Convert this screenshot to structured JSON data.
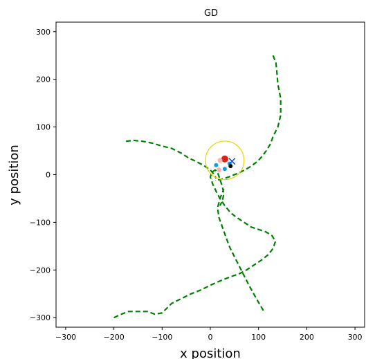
{
  "chart_data": {
    "type": "line",
    "title": "GD",
    "xlabel": "x position",
    "ylabel": "y position",
    "xlim": [
      -320,
      320
    ],
    "ylim": [
      -320,
      320
    ],
    "xticks": [
      -300,
      -200,
      -100,
      0,
      100,
      200,
      300
    ],
    "yticks": [
      -300,
      -200,
      -100,
      0,
      100,
      200,
      300
    ],
    "xtick_labels": [
      "−300",
      "−200",
      "−100",
      "0",
      "100",
      "200",
      "300"
    ],
    "ytick_labels": [
      "−300",
      "−200",
      "−100",
      "0",
      "100",
      "200",
      "300"
    ],
    "grid": false,
    "trajectory_color": "#008000",
    "series": [
      {
        "x": [
          130,
          136,
          138,
          140,
          146,
          146,
          140,
          130,
          125,
          116,
          107,
          98,
          85,
          72,
          55,
          38,
          22,
          10
        ],
        "y": [
          250,
          235,
          215,
          190,
          160,
          125,
          100,
          80,
          65,
          50,
          38,
          28,
          18,
          10,
          2,
          -5,
          -10,
          -12
        ]
      },
      {
        "x": [
          -175,
          -160,
          -140,
          -120,
          -100,
          -80,
          -60,
          -45,
          -30,
          -15,
          0,
          8,
          12
        ],
        "y": [
          70,
          72,
          70,
          66,
          60,
          55,
          45,
          35,
          28,
          20,
          10,
          0,
          -8
        ]
      },
      {
        "x": [
          -200,
          -185,
          -170,
          -150,
          -130,
          -115,
          -100,
          -90,
          -80,
          -60,
          -40,
          -20,
          0,
          20,
          40,
          60,
          75,
          90,
          105,
          120,
          130,
          135,
          128,
          115,
          100,
          85,
          70,
          55,
          42,
          30,
          20,
          12,
          5,
          0,
          3,
          10,
          15,
          20,
          25,
          28,
          25,
          20
        ],
        "y": [
          -300,
          -293,
          -287,
          -287,
          -287,
          -293,
          -290,
          -280,
          -270,
          -260,
          -250,
          -242,
          -232,
          -223,
          -215,
          -208,
          -200,
          -190,
          -180,
          -168,
          -155,
          -140,
          -128,
          -120,
          -115,
          -110,
          -100,
          -90,
          -80,
          -65,
          -50,
          -35,
          -20,
          -5,
          5,
          10,
          5,
          -10,
          -25,
          -40,
          -55,
          -65
        ]
      },
      {
        "x": [
          110,
          100,
          90,
          80,
          70,
          60,
          50,
          40,
          32,
          25,
          18,
          15,
          20,
          28
        ],
        "y": [
          -285,
          -268,
          -250,
          -232,
          -212,
          -192,
          -172,
          -152,
          -130,
          -110,
          -90,
          -70,
          -50,
          -30
        ]
      }
    ],
    "markers": [
      {
        "kind": "circle",
        "x": 30,
        "y": 30,
        "radius": 40,
        "color": "#e8d000"
      },
      {
        "kind": "point",
        "x": 30,
        "y": 33,
        "color": "#e02020",
        "size": 10
      },
      {
        "kind": "point",
        "x": 20,
        "y": 30,
        "color": "#ffb0b0",
        "size": 7
      },
      {
        "kind": "point",
        "x": 18,
        "y": 10,
        "color": "#ffb0b0",
        "size": 7
      },
      {
        "kind": "point",
        "x": 12,
        "y": 20,
        "color": "#1f9ad8",
        "size": 6
      },
      {
        "kind": "point",
        "x": 30,
        "y": 12,
        "color": "#1f9ad8",
        "size": 6
      },
      {
        "kind": "point",
        "x": 40,
        "y": 23,
        "color": "#1f9ad8",
        "size": 6
      },
      {
        "kind": "point",
        "x": 42,
        "y": 18,
        "color": "#000000",
        "size": 6
      },
      {
        "kind": "cross",
        "x": 45,
        "y": 28,
        "color": "#2050d0",
        "size": 9
      }
    ]
  }
}
